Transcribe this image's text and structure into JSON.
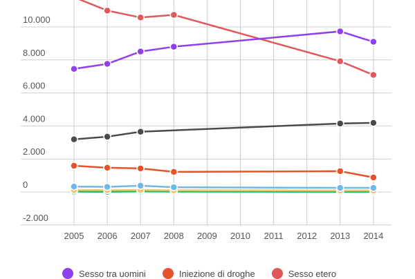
{
  "chart_data": {
    "type": "line",
    "title": "",
    "xlabel": "",
    "ylabel": "",
    "x": [
      2005,
      2006,
      2007,
      2008,
      2009,
      2010,
      2011,
      2012,
      2013,
      2014
    ],
    "x_tick_labels": [
      "2005",
      "2006",
      "2007",
      "2008",
      "2009",
      "2010",
      "2011",
      "2012",
      "2013",
      "2014"
    ],
    "y_tick_labels": [
      "-2.000",
      "0",
      "2.000",
      "4.000",
      "6.000",
      "8.000",
      "10.000"
    ],
    "y_ticks": [
      -2000,
      0,
      2000,
      4000,
      6000,
      8000,
      10000
    ],
    "ylim": [
      -2000,
      11600
    ],
    "grid": true,
    "legend_position": "bottom",
    "series": [
      {
        "name": "Sesso tra uomini",
        "color": "#8e3ff0",
        "points": [
          [
            2005,
            7460
          ],
          [
            2006,
            7760
          ],
          [
            2007,
            8510
          ],
          [
            2008,
            8800
          ],
          [
            2013,
            9730
          ],
          [
            2014,
            9100
          ]
        ]
      },
      {
        "name": "Iniezione di droghe",
        "color": "#e8512a",
        "points": [
          [
            2005,
            1590
          ],
          [
            2006,
            1470
          ],
          [
            2007,
            1430
          ],
          [
            2008,
            1220
          ],
          [
            2013,
            1260
          ],
          [
            2014,
            880
          ]
        ]
      },
      {
        "name": "Sesso etero",
        "color": "#e0585a",
        "points": [
          [
            2005,
            11800
          ],
          [
            2006,
            10990
          ],
          [
            2007,
            10570
          ],
          [
            2008,
            10730
          ],
          [
            2013,
            7920
          ],
          [
            2014,
            7090
          ]
        ]
      },
      {
        "color": "#4a4a48",
        "points": [
          [
            2005,
            3190
          ],
          [
            2006,
            3350
          ],
          [
            2007,
            3650
          ],
          [
            2013,
            4150
          ],
          [
            2014,
            4190
          ]
        ]
      },
      {
        "color": "#6fb8e8",
        "points": [
          [
            2005,
            330
          ],
          [
            2006,
            310
          ],
          [
            2007,
            380
          ],
          [
            2008,
            290
          ],
          [
            2013,
            250
          ],
          [
            2014,
            250
          ]
        ]
      },
      {
        "color": "#f2c36b",
        "points": [
          [
            2005,
            120
          ],
          [
            2006,
            110
          ],
          [
            2007,
            120
          ],
          [
            2008,
            100
          ],
          [
            2013,
            90
          ],
          [
            2014,
            90
          ]
        ]
      },
      {
        "color": "#19c45a",
        "points": [
          [
            2005,
            20
          ],
          [
            2006,
            10
          ],
          [
            2007,
            30
          ],
          [
            2008,
            20
          ],
          [
            2013,
            10
          ],
          [
            2014,
            10
          ]
        ]
      }
    ]
  }
}
